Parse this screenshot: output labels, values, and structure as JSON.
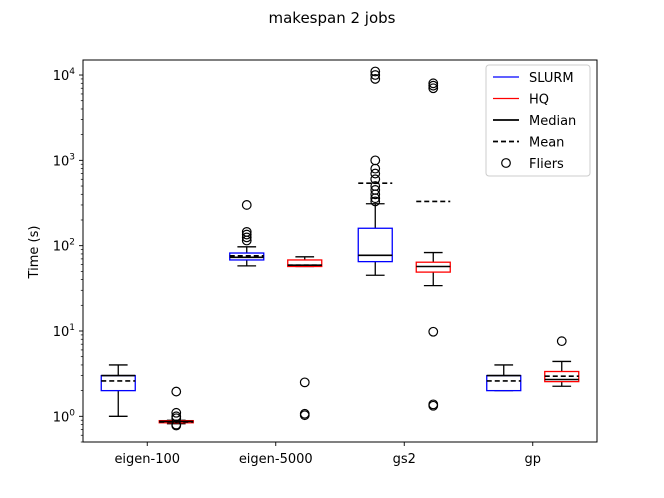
{
  "chart_data": {
    "type": "box",
    "title": "makespan 2 jobs",
    "xlabel": "",
    "ylabel": "Time (s)",
    "yscale": "log",
    "ylim": [
      0.5,
      15000
    ],
    "y_tick_labels": [
      "10^0",
      "10^1",
      "10^2",
      "10^3",
      "10^4"
    ],
    "categories": [
      "eigen-100",
      "eigen-5000",
      "gs2",
      "gp"
    ],
    "legend_position": "top-right",
    "legend": [
      {
        "label": "SLURM",
        "kind": "line",
        "color": "#0000ff",
        "dash": "solid"
      },
      {
        "label": "HQ",
        "kind": "line",
        "color": "#ff0000",
        "dash": "solid"
      },
      {
        "label": "Median",
        "kind": "line",
        "color": "#000000",
        "dash": "solid"
      },
      {
        "label": "Mean",
        "kind": "line",
        "color": "#000000",
        "dash": "dashed"
      },
      {
        "label": "Fliers",
        "kind": "circle",
        "color": "#000000",
        "dash": "solid"
      }
    ],
    "series": [
      {
        "name": "SLURM",
        "color": "#0000ff",
        "boxes": [
          {
            "category": "eigen-100",
            "q1": 2.0,
            "median": 3.0,
            "q3": 3.0,
            "whisker_low": 1.0,
            "whisker_high": 4.0,
            "mean": 2.6,
            "fliers": []
          },
          {
            "category": "eigen-5000",
            "q1": 68,
            "median": 73,
            "q3": 82,
            "whisker_low": 58,
            "whisker_high": 97,
            "mean": 76,
            "fliers": [
              115,
              125,
              135,
              145,
              300
            ]
          },
          {
            "category": "gs2",
            "q1": 65,
            "median": 77,
            "q3": 160,
            "whisker_low": 45,
            "whisker_high": 310,
            "mean": 540,
            "fliers": [
              330,
              360,
              400,
              450,
              500,
              600,
              700,
              800,
              1000,
              9000,
              10000,
              11000
            ]
          },
          {
            "category": "gp",
            "q1": 2.0,
            "median": 3.0,
            "q3": 3.0,
            "whisker_low": 2.0,
            "whisker_high": 4.0,
            "mean": 2.6,
            "fliers": []
          }
        ]
      },
      {
        "name": "HQ",
        "color": "#ff0000",
        "boxes": [
          {
            "category": "eigen-100",
            "q1": 0.84,
            "median": 0.87,
            "q3": 0.89,
            "whisker_low": 0.82,
            "whisker_high": 0.9,
            "mean": 0.86,
            "fliers": [
              0.78,
              0.8,
              0.95,
              1.0,
              1.1,
              1.95
            ]
          },
          {
            "category": "eigen-5000",
            "q1": 57,
            "median": 59,
            "q3": 68,
            "whisker_low": 57,
            "whisker_high": 74,
            "mean": 59,
            "fliers": [
              1.03,
              1.07,
              2.5
            ]
          },
          {
            "category": "gs2",
            "q1": 49,
            "median": 57,
            "q3": 64,
            "whisker_low": 34,
            "whisker_high": 83,
            "mean": 330,
            "fliers": [
              1.33,
              1.38,
              9.8,
              7000,
              7500,
              8000
            ]
          },
          {
            "category": "gp",
            "q1": 2.55,
            "median": 2.7,
            "q3": 3.35,
            "whisker_low": 2.25,
            "whisker_high": 4.4,
            "mean": 2.95,
            "fliers": [
              7.6
            ]
          }
        ]
      }
    ]
  }
}
